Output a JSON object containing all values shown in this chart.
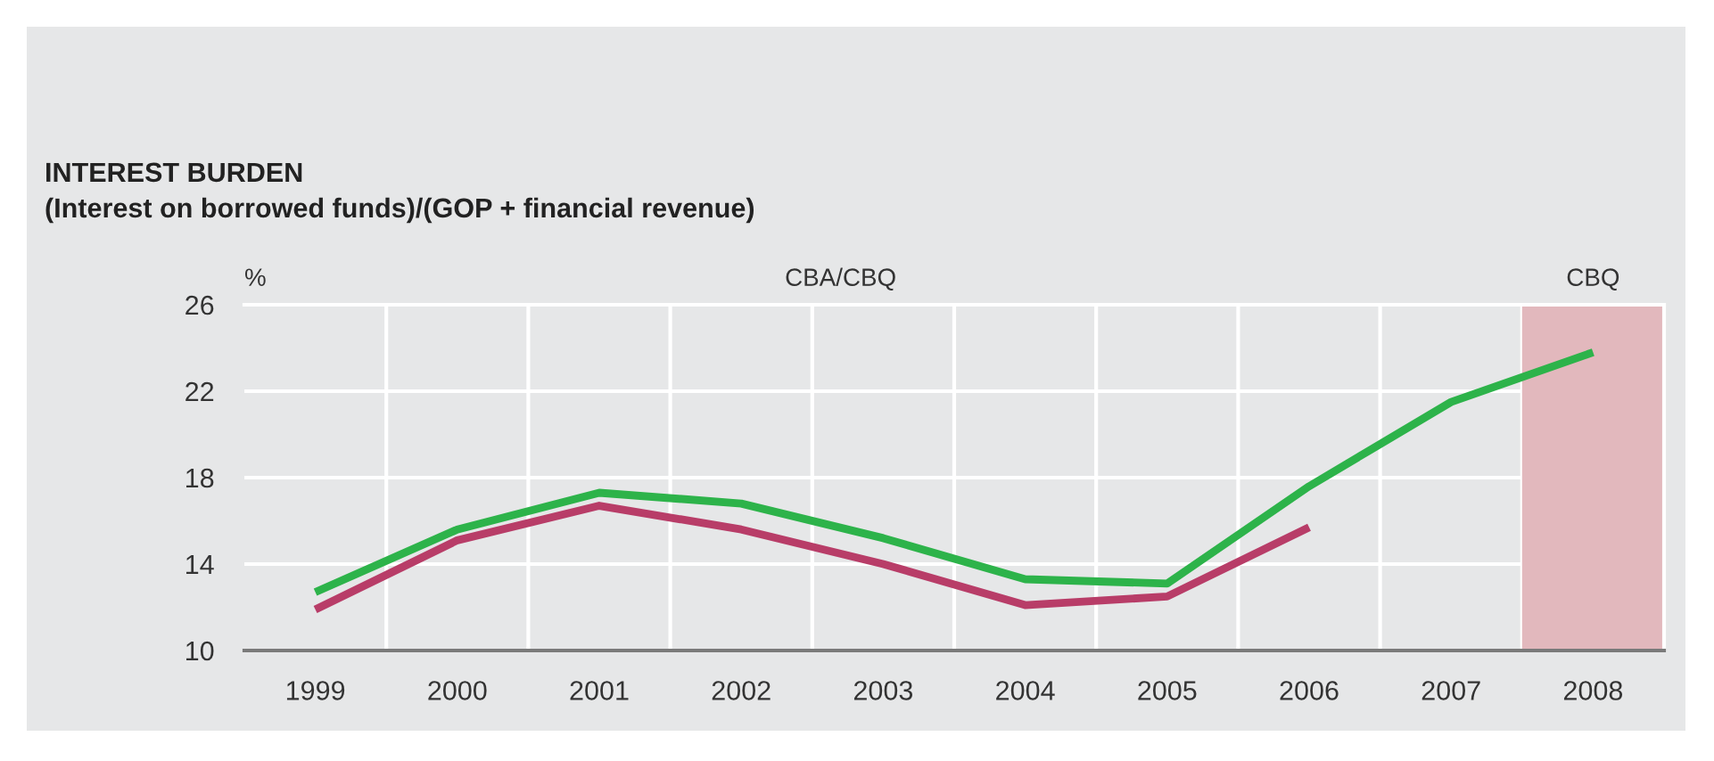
{
  "chart_data": {
    "type": "line",
    "title": "INTEREST BURDEN",
    "subtitle": "(Interest on borrowed funds)/(GOP + financial revenue)",
    "ylabel": "%",
    "categories": [
      "1999",
      "2000",
      "2001",
      "2002",
      "2003",
      "2004",
      "2005",
      "2006",
      "2007",
      "2008"
    ],
    "series": [
      {
        "color": "#2db34a",
        "values": [
          12.7,
          15.6,
          17.3,
          16.8,
          15.2,
          13.3,
          13.1,
          17.6,
          21.5,
          23.8
        ]
      },
      {
        "color": "#b83d68",
        "values": [
          11.9,
          15.1,
          16.7,
          15.6,
          14.0,
          12.1,
          12.5,
          15.7,
          null,
          null
        ]
      }
    ],
    "ylim": [
      10,
      26
    ],
    "yticks": [
      10,
      14,
      18,
      22,
      26
    ],
    "grid": true,
    "legend": false,
    "line_style": "solid",
    "marker": "none",
    "annotations": [
      "CBA/CBQ"
    ],
    "bands": [
      {
        "axis": "x",
        "from": "2008",
        "to": "2008",
        "label": "CBQ",
        "color": "#e2b8bd"
      }
    ]
  }
}
